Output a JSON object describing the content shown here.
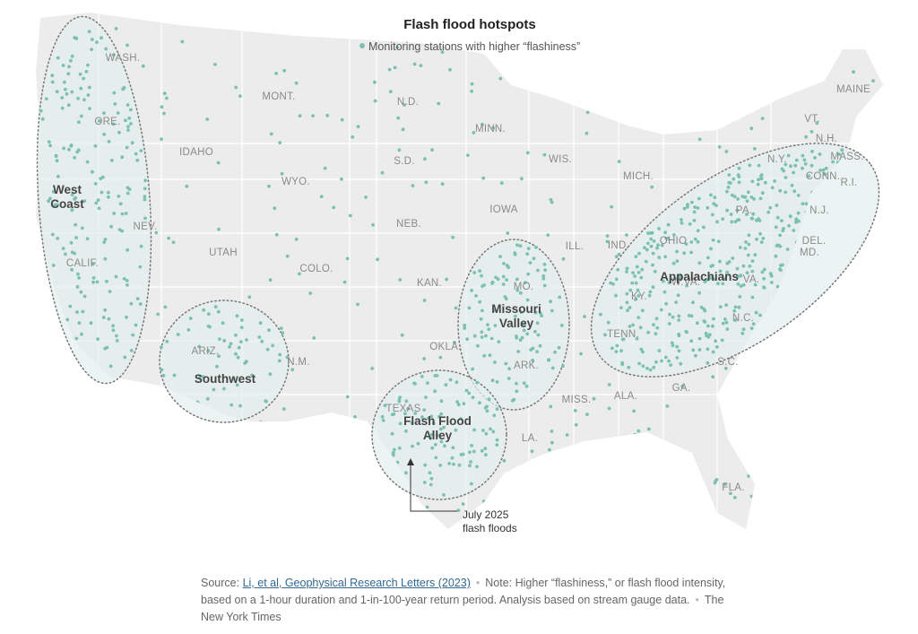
{
  "title": "Flash flood hotspots",
  "legend": "Monitoring stations with higher “flashiness”",
  "state_labels": [
    "WASH.",
    "ORE.",
    "CALIF.",
    "NEV.",
    "IDAHO",
    "MONT.",
    "WYO.",
    "UTAH",
    "ARIZ.",
    "N.M.",
    "COLO.",
    "N.D.",
    "S.D.",
    "NEB.",
    "KAN.",
    "OKLA.",
    "TEXAS",
    "MINN.",
    "IOWA",
    "MO.",
    "ARK.",
    "LA.",
    "WIS.",
    "ILL.",
    "MICH.",
    "IND.",
    "OHIO",
    "KY.",
    "TENN.",
    "MISS.",
    "ALA.",
    "GA.",
    "FLA.",
    "S.C.",
    "N.C.",
    "VA.",
    "W.VA.",
    "PA.",
    "N.Y.",
    "MAINE",
    "VT.",
    "N.H.",
    "MASS.",
    "CONN.",
    "R.I.",
    "N.J.",
    "DEL.",
    "MD."
  ],
  "regions": [
    {
      "lines": [
        "West",
        "Coast"
      ]
    },
    {
      "lines": [
        "Southwest"
      ]
    },
    {
      "lines": [
        "Missouri",
        "Valley"
      ]
    },
    {
      "lines": [
        "Flash Flood",
        "Alley"
      ]
    },
    {
      "lines": [
        "Appalachians"
      ]
    }
  ],
  "annotation": {
    "lines": [
      "July 2025",
      "flash floods"
    ]
  },
  "source": {
    "label": "Source:",
    "link": "Li, et al, Geophysical Research Letters (2023)",
    "note": "Note: Higher “flashiness,” or flash flood intensity, based on a 1-hour duration and 1-in-100-year return period. Analysis based on stream gauge data.",
    "credit": "The New York Times"
  }
}
